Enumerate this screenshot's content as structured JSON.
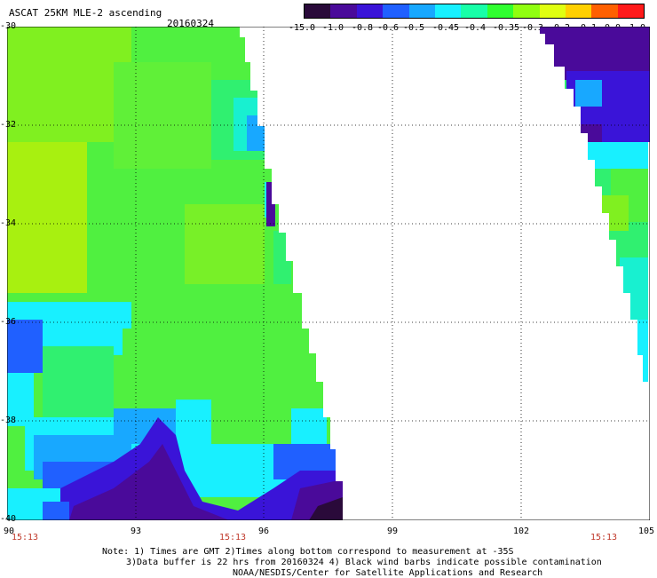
{
  "header": {
    "title": "ASCAT 25KM MLE-2 ascending",
    "date": "20160324"
  },
  "colorbar": {
    "labels": [
      "-15.0",
      "-1.0",
      "-0.8",
      "-0.6",
      "-0.5",
      "-0.45",
      "-0.4",
      "-0.35",
      "-0.3",
      "-0.2",
      "-0.1",
      "0.0",
      "1.0"
    ],
    "colors": [
      "#2a0a3a",
      "#4a0a9a",
      "#3a14d8",
      "#2060ff",
      "#18a8ff",
      "#18f0ff",
      "#18ffa8",
      "#30ff30",
      "#90ff10",
      "#e0ff10",
      "#ffd000",
      "#ff6000",
      "#ff1a1a"
    ]
  },
  "map": {
    "lon_ticks": [
      "90",
      "93",
      "96",
      "99",
      "102",
      "105"
    ],
    "lat_ticks": [
      "-30",
      "-32",
      "-34",
      "-36",
      "-38",
      "-40"
    ],
    "lon_range": [
      90,
      105
    ],
    "lat_range": [
      -30,
      -40
    ],
    "pass_times": [
      "15:13",
      "15:13",
      "15:13"
    ]
  },
  "notes": {
    "line1": "Note: 1) Times are GMT 2)Times along bottom correspond to measurement at -35S",
    "line2": "3)Data buffer is 22 hrs from 20160324 4) Black wind barbs indicate possible contamination",
    "line3": "NOAA/NESDIS/Center for Satellite Applications and Research"
  }
}
